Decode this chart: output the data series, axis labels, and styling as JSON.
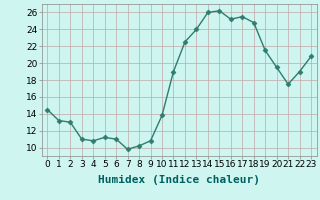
{
  "x": [
    0,
    1,
    2,
    3,
    4,
    5,
    6,
    7,
    8,
    9,
    10,
    11,
    12,
    13,
    14,
    15,
    16,
    17,
    18,
    19,
    20,
    21,
    22,
    23
  ],
  "y": [
    14.5,
    13.2,
    13.0,
    11.0,
    10.8,
    11.2,
    11.0,
    9.8,
    10.2,
    10.8,
    13.8,
    19.0,
    22.5,
    24.0,
    26.0,
    26.2,
    25.2,
    25.5,
    24.8,
    21.5,
    19.5,
    17.5,
    19.0,
    20.8
  ],
  "line_color": "#2e7d6e",
  "marker": "D",
  "marker_size": 2.5,
  "bg_color": "#cef5f0",
  "grid_major_color": "#c0a8a8",
  "grid_minor_color": "#ddd0d0",
  "xlabel": "Humidex (Indice chaleur)",
  "xlabel_fontsize": 8,
  "xlabel_color": "#006060",
  "xlim": [
    -0.5,
    23.5
  ],
  "ylim": [
    9,
    27
  ],
  "yticks": [
    10,
    12,
    14,
    16,
    18,
    20,
    22,
    24,
    26
  ],
  "xticks": [
    0,
    1,
    2,
    3,
    4,
    5,
    6,
    7,
    8,
    9,
    10,
    11,
    12,
    13,
    14,
    15,
    16,
    17,
    18,
    19,
    20,
    21,
    22,
    23
  ],
  "tick_fontsize": 6.5,
  "linewidth": 1.0
}
